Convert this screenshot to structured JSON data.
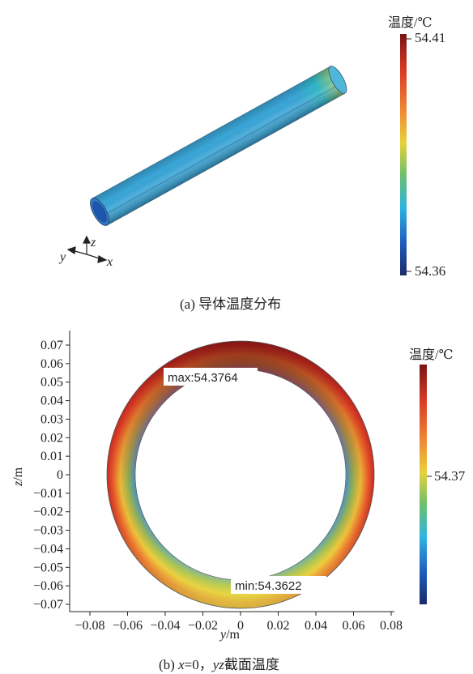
{
  "panel_a": {
    "caption": "(a)  导体温度分布",
    "colorbar": {
      "title": "温度/℃",
      "max_label": "54.41",
      "min_label": "54.36"
    },
    "triad": {
      "x": "x",
      "y": "y",
      "z": "z"
    }
  },
  "panel_b": {
    "caption_prefix": "(b)  ",
    "caption_x": "x",
    "caption_eq": "=0，",
    "caption_yz": "yz",
    "caption_suffix": "截面温度",
    "colorbar": {
      "title": "温度/℃",
      "mid_label": "54.37"
    },
    "annotations": {
      "max": "max:54.3764",
      "min": "min:54.3622"
    },
    "x_label_var": "y",
    "x_label_unit": "/m",
    "y_label_var": "z",
    "y_label_unit": "/m",
    "x_ticks": [
      "−0.08",
      "−0.06",
      "−0.04",
      "−0.02",
      "0",
      "0.02",
      "0.04",
      "0.06",
      "0.08"
    ],
    "y_ticks": [
      "0.07",
      "0.06",
      "0.05",
      "0.04",
      "0.03",
      "0.02",
      "0.01",
      "0",
      "−0.01",
      "−0.02",
      "−0.03",
      "−0.04",
      "−0.05",
      "−0.06",
      "−0.07"
    ]
  },
  "colors": {
    "hot": "#8b1a1a",
    "red": "#d93a25",
    "orange": "#f08030",
    "yellow": "#e8d23a",
    "green": "#6fc06a",
    "cyan": "#2db4e0",
    "blue": "#1f5fbf",
    "navy": "#1b2a6b"
  }
}
